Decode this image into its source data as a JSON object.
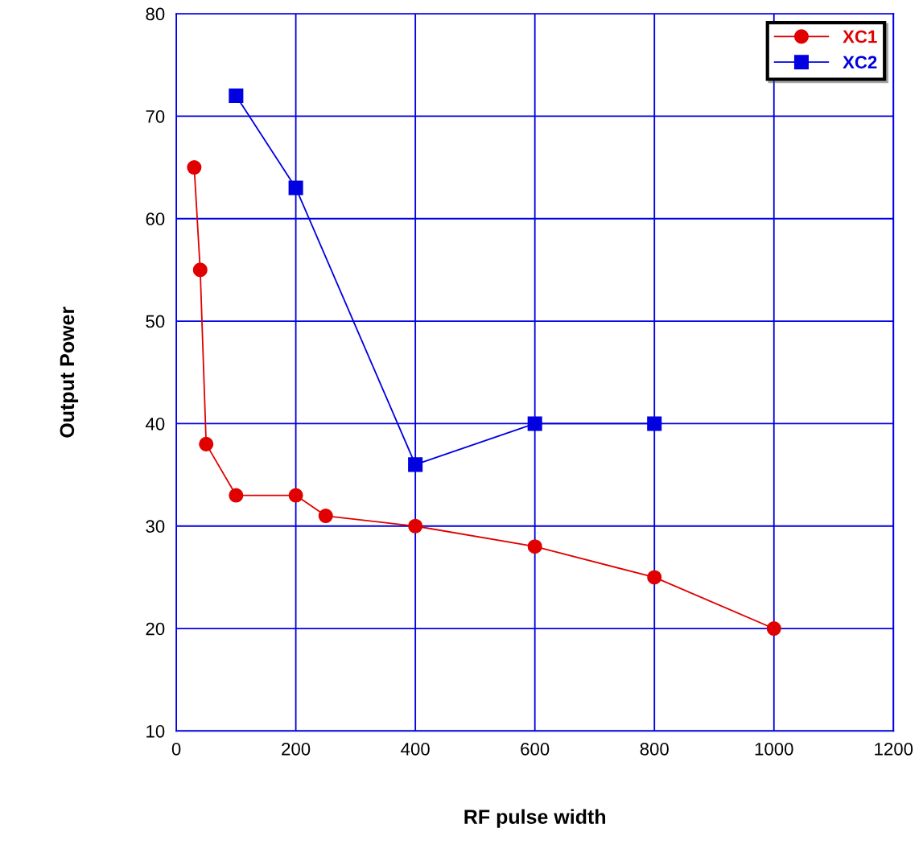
{
  "chart_data": {
    "type": "line",
    "xlabel": "RF pulse width",
    "ylabel": "Output Power",
    "xlim": [
      0,
      1200
    ],
    "xticks": [
      0,
      200,
      400,
      600,
      800,
      1000,
      1200
    ],
    "ylim": [
      10,
      80
    ],
    "yticks": [
      10,
      20,
      30,
      40,
      50,
      60,
      70,
      80
    ],
    "grid": true,
    "legend": "top right",
    "line_style": "solid",
    "series": [
      {
        "name": "XC1",
        "color": "#e00000",
        "marker": "circle",
        "x": [
          30,
          40,
          50,
          100,
          200,
          250,
          400,
          600,
          800,
          1000
        ],
        "values": [
          65,
          55,
          38,
          33,
          33,
          31,
          30,
          28,
          25,
          20
        ]
      },
      {
        "name": "XC2",
        "color": "#0000e0",
        "marker": "square",
        "x": [
          100,
          200,
          400,
          600,
          800
        ],
        "values": [
          72,
          63,
          36,
          40,
          40
        ]
      }
    ]
  }
}
